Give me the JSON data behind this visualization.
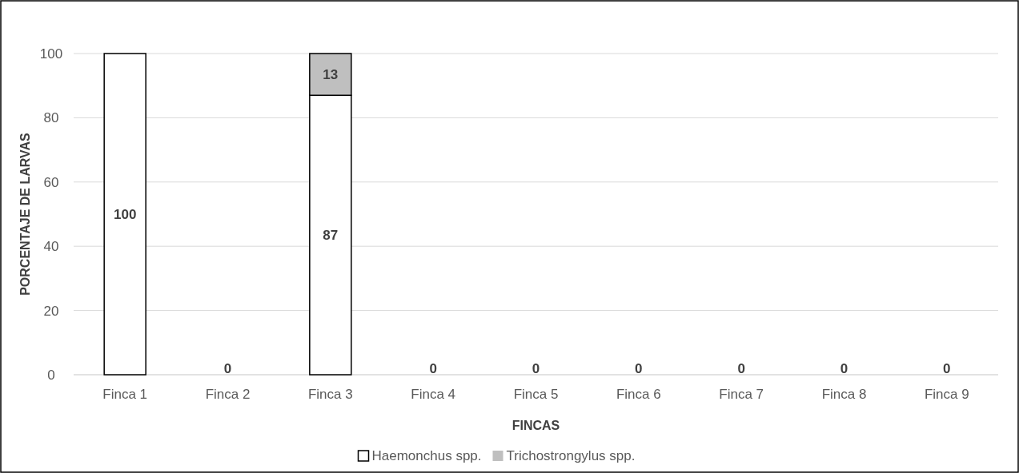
{
  "chart_data": {
    "type": "bar",
    "stacked": true,
    "xlabel": "FINCAS",
    "ylabel": "PORCENTAJE DE LARVAS",
    "categories": [
      "Finca 1",
      "Finca 2",
      "Finca 3",
      "Finca 4",
      "Finca 5",
      "Finca 6",
      "Finca 7",
      "Finca 8",
      "Finca 9"
    ],
    "series": [
      {
        "name": "Haemonchus spp.",
        "color": "#ffffff",
        "values": [
          100,
          0,
          87,
          0,
          0,
          0,
          0,
          0,
          0
        ],
        "value_labels": [
          "100",
          "0",
          "87",
          "0",
          "0",
          "0",
          "0",
          "0",
          "0"
        ]
      },
      {
        "name": "Trichostrongylus spp.",
        "color": "#bfbfbf",
        "values": [
          0,
          0,
          13,
          0,
          0,
          0,
          0,
          0,
          0
        ],
        "value_labels": [
          null,
          null,
          "13",
          null,
          null,
          null,
          null,
          null,
          null
        ]
      }
    ],
    "ylim": [
      0,
      100
    ],
    "yticks": [
      0,
      20,
      40,
      60,
      80,
      100
    ],
    "grid": "y",
    "legend": "bottom"
  }
}
